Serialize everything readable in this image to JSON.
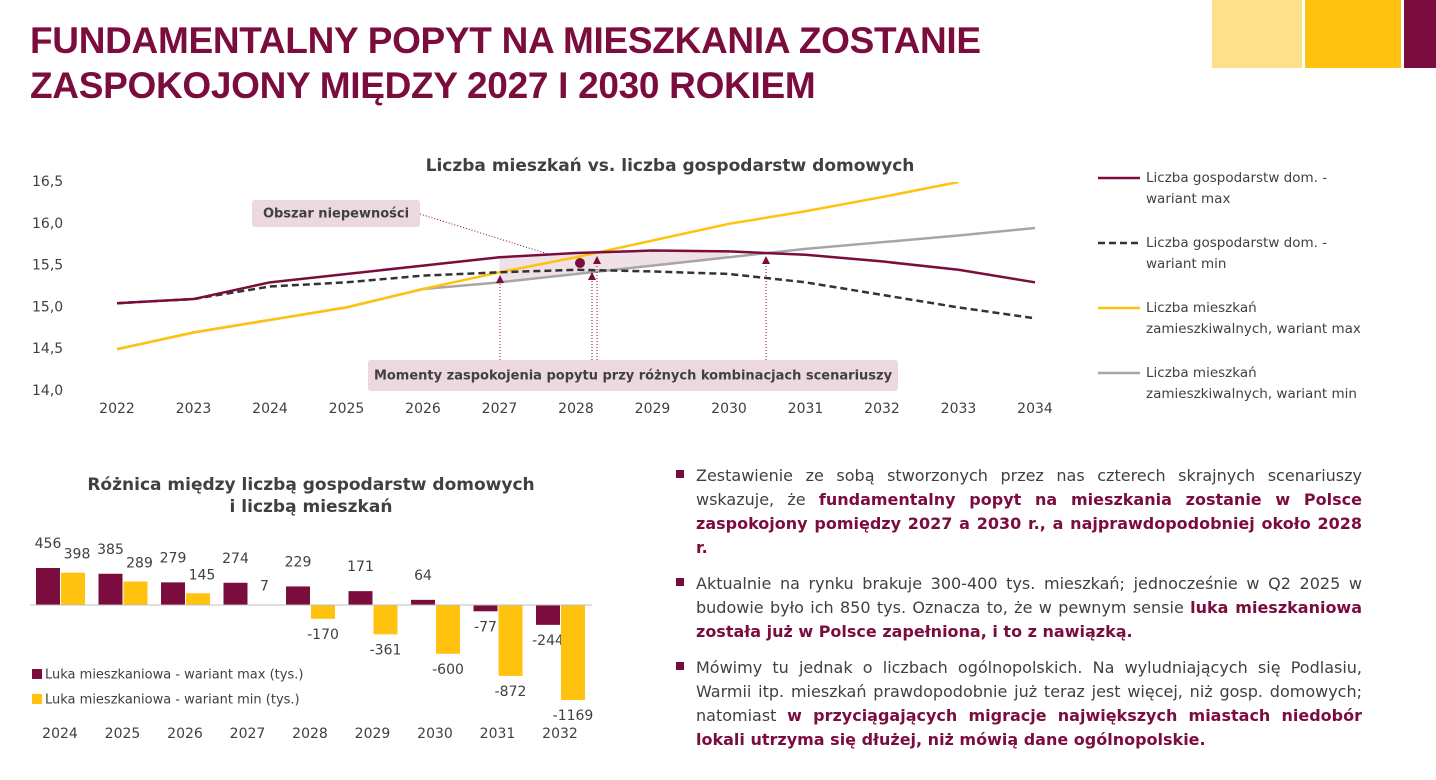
{
  "title": [
    "FUNDAMENTALNY POPYT NA MIESZKANIA ZOSTANIE",
    "ZASPOKOJONY MIĘDZY 2027 I 2030 ROKIEM"
  ],
  "chart_data": [
    {
      "type": "line",
      "title": "Liczba mieszkań vs. liczba gospodarstw domowych",
      "categories": [
        "2022",
        "2023",
        "2024",
        "2025",
        "2026",
        "2027",
        "2028",
        "2029",
        "2030",
        "2031",
        "2032",
        "2033",
        "2034"
      ],
      "series": [
        {
          "name": "Liczba gospodarstw dom. - wariant max",
          "color": "#7b0c3e",
          "style": "solid",
          "values": [
            15.05,
            15.1,
            15.3,
            15.4,
            15.5,
            15.6,
            15.65,
            15.68,
            15.67,
            15.63,
            15.55,
            15.45,
            15.3
          ]
        },
        {
          "name": "Liczba gospodarstw dom. - wariant min",
          "color": "#333333",
          "style": "dashed",
          "values": [
            15.05,
            15.1,
            15.25,
            15.3,
            15.38,
            15.42,
            15.45,
            15.43,
            15.4,
            15.3,
            15.15,
            15.0,
            14.87
          ]
        },
        {
          "name": "Liczba mieszkań zamieszkiwalnych, wariant max",
          "color": "#ffc20e",
          "style": "solid",
          "values": [
            14.5,
            14.7,
            14.85,
            15.0,
            15.22,
            15.42,
            15.6,
            15.8,
            16.0,
            16.15,
            16.32,
            16.5,
            null
          ]
        },
        {
          "name": "Liczba mieszkań zamieszkiwalnych, wariant min",
          "color": "#a6a6a6",
          "style": "solid",
          "values": [
            14.5,
            14.7,
            14.85,
            15.0,
            15.22,
            15.3,
            15.4,
            15.5,
            15.6,
            15.7,
            15.78,
            15.86,
            15.95
          ]
        }
      ],
      "ylim": [
        14.0,
        16.5
      ],
      "yticks": [
        {
          "value": 14.0,
          "label": "14,0"
        },
        {
          "value": 14.5,
          "label": "14,5"
        },
        {
          "value": 15.0,
          "label": "15,0"
        },
        {
          "value": 15.5,
          "label": "15,5"
        },
        {
          "value": 16.0,
          "label": "16,0"
        },
        {
          "value": 16.5,
          "label": "16,5"
        }
      ],
      "annotations": [
        "Obszar niepewności",
        "Momenty zaspokojenia popytu przy różnych kombinacjach scenariuszy"
      ],
      "legend": "right"
    },
    {
      "type": "bar",
      "title": [
        "Różnica między liczbą gospodarstw domowych",
        "i liczbą mieszkań"
      ],
      "categories": [
        "2024",
        "2025",
        "2026",
        "2027",
        "2028",
        "2029",
        "2030",
        "2031",
        "2032"
      ],
      "series": [
        {
          "name": "Luka mieszkaniowa - wariant max (tys.)",
          "color": "#7b0c3e",
          "values": [
            456,
            385,
            279,
            274,
            229,
            171,
            64,
            -77,
            -244
          ]
        },
        {
          "name": "Luka mieszkaniowa - wariant min (tys.)",
          "color": "#ffc20e",
          "values": [
            398,
            289,
            145,
            7,
            -170,
            -361,
            -600,
            -872,
            -1169
          ]
        }
      ],
      "legend": "lower left"
    }
  ],
  "bullets": [
    [
      {
        "text": "Zestawienie ze sobą stworzonych przez nas czterech skrajnych scenariuszy wskazuje, że ",
        "bold": false
      },
      {
        "text": "fundamentalny popyt na mieszkania zostanie w Polsce zaspokojony pomiędzy 2027 a 2030 r., a najprawdopodobniej około 2028 r.",
        "bold": true
      }
    ],
    [
      {
        "text": "Aktualnie na rynku brakuje 300-400 tys. mieszkań; jednocześnie w Q2 2025 w budowie było ich 850 tys. Oznacza to, że w pewnym sensie ",
        "bold": false
      },
      {
        "text": "luka mieszkaniowa została już w Polsce zapełniona, i to z nawiązką.",
        "bold": true
      }
    ],
    [
      {
        "text": "Mówimy tu jednak o liczbach ogólnopolskich. Na wyludniających się Podlasiu, Warmii itp. mieszkań prawdopodobnie już teraz jest więcej, niż gosp. domowych; natomiast ",
        "bold": false
      },
      {
        "text": "w przyciągających migracje największych miastach niedobór lokali utrzyma się dłużej, niż mówią dane ogólnopolskie.",
        "bold": true
      }
    ]
  ]
}
